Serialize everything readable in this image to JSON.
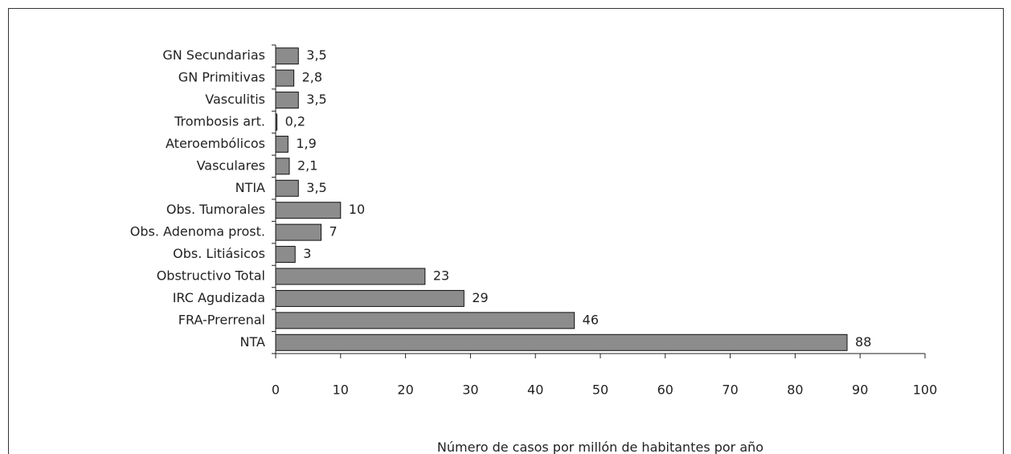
{
  "chart_data": {
    "type": "bar",
    "orientation": "horizontal",
    "categories": [
      "GN Secundarias",
      "GN Primitivas",
      "Vasculitis",
      "Trombosis art.",
      "Ateroembólicos",
      "Vasculares",
      "NTIA",
      "Obs. Tumorales",
      "Obs. Adenoma prost.",
      "Obs. Litiásicos",
      "Obstructivo Total",
      "IRC Agudizada",
      "FRA-Prerrenal",
      "NTA"
    ],
    "values": [
      3.5,
      2.8,
      3.5,
      0.2,
      1.9,
      2.1,
      3.5,
      10,
      7,
      3,
      23,
      29,
      46,
      88
    ],
    "value_labels": [
      "3,5",
      "2,8",
      "3,5",
      "0,2",
      "1,9",
      "2,1",
      "3,5",
      "10",
      "7",
      "3",
      "23",
      "29",
      "46",
      "88"
    ],
    "color": "#8c8c8c",
    "xlabel": "Número de casos por millón de habitantes por año",
    "xlim": [
      0,
      100
    ],
    "xticks": [
      0,
      10,
      20,
      30,
      40,
      50,
      60,
      70,
      80,
      90,
      100
    ]
  }
}
